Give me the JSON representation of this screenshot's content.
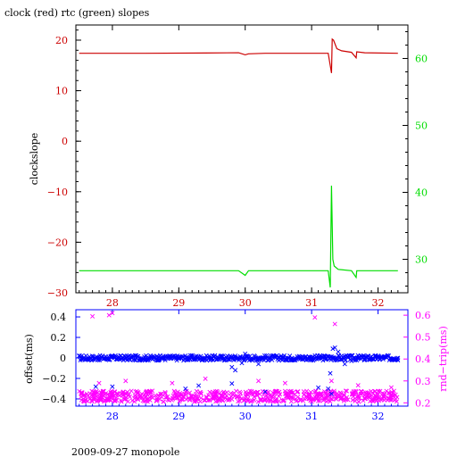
{
  "title": "clock (red) rtc (green) slopes",
  "footer": "2009-09-27 monopole",
  "colors": {
    "clock": "#cc0000",
    "rtc": "#00dd00",
    "offset": "#0000ff",
    "rndtrip": "#ff00ff",
    "axis": "#000000"
  },
  "chart_data": [
    {
      "type": "line",
      "title": "clock (red) rtc (green) slopes",
      "xlabel": "",
      "ylabel": "clockslope",
      "xlim": [
        27.45,
        32.45
      ],
      "ylim": [
        -30,
        23
      ],
      "y2lim": [
        25,
        65
      ],
      "x_ticks": [
        28,
        29,
        30,
        31,
        32
      ],
      "y_ticks": [
        -30,
        -20,
        -10,
        0,
        10,
        20
      ],
      "y2_ticks": [
        30,
        40,
        50,
        60
      ],
      "grid": false,
      "series": [
        {
          "axis": "left",
          "points": [
            [
              27.5,
              17.4
            ],
            [
              28.5,
              17.4
            ],
            [
              29.4,
              17.45
            ],
            [
              29.9,
              17.5
            ],
            [
              30.0,
              17.1
            ],
            [
              30.05,
              17.3
            ],
            [
              30.3,
              17.4
            ],
            [
              30.6,
              17.4
            ],
            [
              31.0,
              17.4
            ],
            [
              31.25,
              17.4
            ],
            [
              31.3,
              13.5
            ],
            [
              31.31,
              20.2
            ],
            [
              31.33,
              20.0
            ],
            [
              31.38,
              18.3
            ],
            [
              31.45,
              17.9
            ],
            [
              31.6,
              17.6
            ],
            [
              31.67,
              16.5
            ],
            [
              31.68,
              17.7
            ],
            [
              31.8,
              17.5
            ],
            [
              32.3,
              17.4
            ]
          ]
        },
        {
          "axis": "right",
          "points": [
            [
              27.5,
              28.3
            ],
            [
              28.5,
              28.3
            ],
            [
              29.9,
              28.3
            ],
            [
              30.0,
              27.6
            ],
            [
              30.05,
              28.3
            ],
            [
              30.5,
              28.3
            ],
            [
              31.0,
              28.3
            ],
            [
              31.25,
              28.3
            ],
            [
              31.28,
              25.8
            ],
            [
              31.3,
              41.0
            ],
            [
              31.32,
              30.0
            ],
            [
              31.34,
              29.0
            ],
            [
              31.4,
              28.5
            ],
            [
              31.6,
              28.3
            ],
            [
              31.67,
              27.3
            ],
            [
              31.68,
              28.3
            ],
            [
              32.3,
              28.3
            ]
          ]
        }
      ]
    },
    {
      "type": "scatter",
      "xlabel": "",
      "ylabel": "offset(ms)",
      "y2label": "rnd−trip(ms)",
      "xlim": [
        27.45,
        32.45
      ],
      "ylim": [
        -0.47,
        0.47
      ],
      "y2lim": [
        0.185,
        0.625
      ],
      "x_ticks": [
        28,
        29,
        30,
        31,
        32
      ],
      "y_ticks": [
        -0.4,
        -0.2,
        0,
        0.2,
        0.4
      ],
      "y2_ticks": [
        0.2,
        0.3,
        0.4,
        0.5,
        0.6
      ],
      "grid": false,
      "series": [
        {
          "axis": "left",
          "points": [
            [
              27.5,
              0.02
            ],
            [
              27.8,
              0.0
            ],
            [
              28.0,
              0.01
            ],
            [
              28.3,
              0.0
            ],
            [
              28.5,
              -0.01
            ],
            [
              28.7,
              0.01
            ],
            [
              29.0,
              0.0
            ],
            [
              29.2,
              0.01
            ],
            [
              29.5,
              0.0
            ],
            [
              29.7,
              -0.02
            ],
            [
              29.8,
              -0.09
            ],
            [
              29.85,
              -0.12
            ],
            [
              29.95,
              -0.05
            ],
            [
              30.0,
              0.04
            ],
            [
              30.2,
              -0.06
            ],
            [
              30.3,
              0.0
            ],
            [
              30.5,
              0.01
            ],
            [
              30.7,
              0.0
            ],
            [
              30.9,
              0.01
            ],
            [
              31.0,
              0.0
            ],
            [
              31.2,
              0.02
            ],
            [
              31.28,
              -0.15
            ],
            [
              31.3,
              -0.35
            ],
            [
              31.32,
              0.09
            ],
            [
              31.35,
              0.1
            ],
            [
              31.4,
              0.06
            ],
            [
              31.5,
              -0.06
            ],
            [
              31.6,
              -0.03
            ],
            [
              31.7,
              0.0
            ],
            [
              31.8,
              -0.02
            ],
            [
              32.0,
              0.0
            ],
            [
              32.2,
              -0.01
            ],
            [
              32.3,
              0.0
            ],
            [
              27.75,
              -0.28
            ],
            [
              28.0,
              -0.28
            ],
            [
              29.1,
              -0.3
            ],
            [
              29.3,
              -0.27
            ],
            [
              29.8,
              -0.25
            ],
            [
              30.3,
              -0.33
            ],
            [
              31.1,
              -0.29
            ],
            [
              31.25,
              -0.3
            ]
          ]
        },
        {
          "axis": "right",
          "points": [
            [
              27.7,
              0.595
            ],
            [
              27.95,
              0.6
            ],
            [
              28.0,
              0.61
            ],
            [
              31.05,
              0.59
            ],
            [
              31.35,
              0.56
            ],
            [
              27.8,
              0.29
            ],
            [
              28.2,
              0.3
            ],
            [
              28.9,
              0.29
            ],
            [
              29.4,
              0.31
            ],
            [
              30.2,
              0.3
            ],
            [
              30.6,
              0.29
            ],
            [
              31.3,
              0.3
            ],
            [
              31.7,
              0.28
            ],
            [
              32.2,
              0.27
            ]
          ]
        }
      ]
    }
  ]
}
